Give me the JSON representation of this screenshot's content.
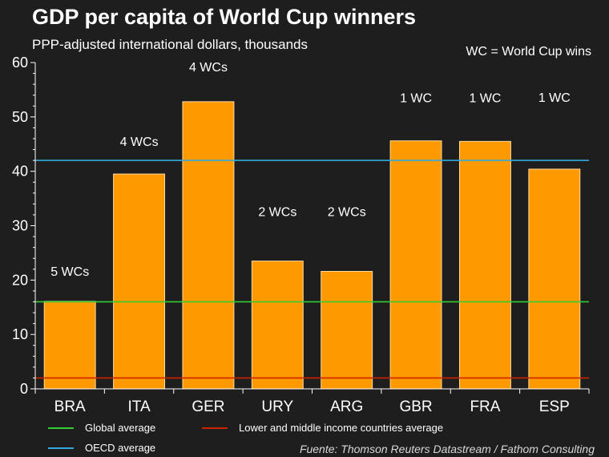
{
  "header": {
    "title": "GDP per capita of World Cup winners",
    "subtitle": "PPP-adjusted international dollars, thousands",
    "note": "WC = World Cup wins"
  },
  "legend": {
    "global": "Global average",
    "oecd": "OECD average",
    "lmic": "Lower and middle income countries average"
  },
  "source": "Fuente: Thomson Reuters Datastream / Fathom Consulting",
  "colors": {
    "bar": "#FF9900",
    "bar_edge": "#FFD9A0",
    "global": "#33CC33",
    "oecd": "#33AADD",
    "lmic": "#CC2200",
    "axis": "#ffffff"
  },
  "chart_data": {
    "type": "bar",
    "title": "GDP per capita of World Cup winners",
    "ylabel": "PPP-adjusted international dollars, thousands",
    "xlabel": "",
    "categories": [
      "BRA",
      "ITA",
      "GER",
      "URY",
      "ARG",
      "GBR",
      "FRA",
      "ESP"
    ],
    "values": [
      16.1,
      39.5,
      52.8,
      23.5,
      21.6,
      45.6,
      45.5,
      40.4
    ],
    "annotations": [
      "5 WCs",
      "4 WCs",
      "4 WCs",
      "2 WCs",
      "2 WCs",
      "1 WC",
      "1 WC",
      "1 WC"
    ],
    "annotation_levels": [
      20.8,
      44.7,
      58.4,
      31.8,
      31.8,
      52.7,
      52.7,
      52.8
    ],
    "reference_lines": [
      {
        "name": "OECD average",
        "value": 42.0
      },
      {
        "name": "Global average",
        "value": 16.0
      },
      {
        "name": "Lower and middle income countries average",
        "value": 2.0
      }
    ],
    "ylim": [
      0,
      60
    ],
    "yticks": [
      0,
      10,
      20,
      30,
      40,
      50,
      60
    ],
    "grid": false
  }
}
